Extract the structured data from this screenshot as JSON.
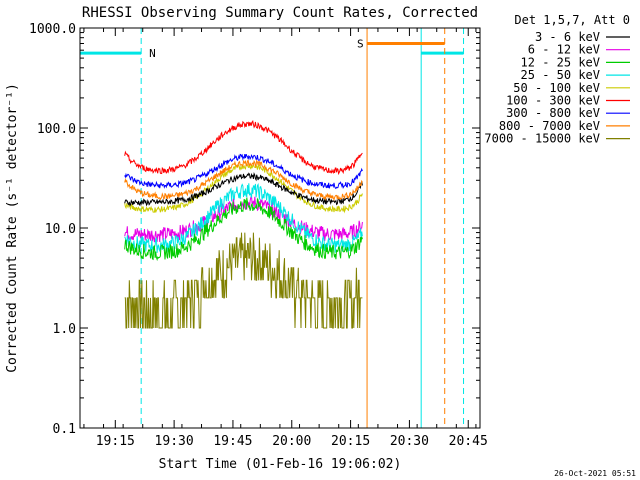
{
  "chart_data": {
    "type": "line",
    "title": "RHESSI Observing Summary Count Rates, Corrected",
    "xlabel": "Start Time (01-Feb-16 19:06:02)",
    "ylabel": "Corrected Count Rate (s⁻¹ detector⁻¹)",
    "yscale": "log",
    "ylim": [
      0.1,
      1000.0
    ],
    "y_ticks": [
      0.1,
      1.0,
      10.0,
      100.0,
      1000.0
    ],
    "y_tick_labels": [
      "0.1",
      "1.0",
      "10.0",
      "100.0",
      "1000.0"
    ],
    "xlim_minutes": [
      19.1,
      20.8
    ],
    "x_ticks": [
      19.25,
      19.5,
      19.75,
      20.0,
      20.25,
      20.5,
      20.75
    ],
    "x_tick_labels": [
      "19:15",
      "19:30",
      "19:45",
      "20:00",
      "20:15",
      "20:30",
      "20:45"
    ],
    "legend_title": "Det 1,5,7, Att 0",
    "legend_position": "outside-right",
    "data_window_hours": [
      19.29,
      20.3
    ],
    "series": [
      {
        "name": "3 - 6 keV",
        "color": "#000000",
        "base": 18,
        "peak": 33,
        "start_val": 18,
        "end_val": 28
      },
      {
        "name": "6 - 12 keV",
        "color": "#e600e6",
        "base": 8.5,
        "peak": 18,
        "start_val": 9,
        "end_val": 11
      },
      {
        "name": "12 - 25 keV",
        "color": "#00cc00",
        "base": 5.5,
        "peak": 17,
        "start_val": 7,
        "end_val": 8
      },
      {
        "name": "25 - 50 keV",
        "color": "#00e6e6",
        "base": 6.5,
        "peak": 24,
        "start_val": 8,
        "end_val": 9
      },
      {
        "name": "50 - 100 keV",
        "color": "#cccc00",
        "base": 15,
        "peak": 42,
        "start_val": 17,
        "end_val": 22
      },
      {
        "name": "100 - 300 keV",
        "color": "#ff0000",
        "base": 36,
        "peak": 110,
        "start_val": 55,
        "end_val": 60
      },
      {
        "name": "300 - 800 keV",
        "color": "#0000ff",
        "base": 26,
        "peak": 52,
        "start_val": 35,
        "end_val": 38
      },
      {
        "name": "800 - 7000 keV",
        "color": "#ff7f00",
        "base": 20,
        "peak": 45,
        "start_val": 30,
        "end_val": 30
      },
      {
        "name": "7000 - 15000 keV",
        "color": "#808000",
        "base": 1.5,
        "peak": 5.0,
        "start_val": 2.0,
        "end_val": 3.0
      }
    ],
    "flag_markers": [
      {
        "label": "N",
        "color": "#00e6e6",
        "value": 560,
        "segments": [
          [
            19.1,
            19.36
          ],
          [
            20.55,
            20.73
          ]
        ],
        "vlines_solid": [
          19.1,
          20.55
        ],
        "vlines_dashed": [
          19.36,
          20.73
        ]
      },
      {
        "label": "S",
        "color": "#ff7f00",
        "value": 700,
        "segments": [
          [
            20.32,
            20.65
          ]
        ],
        "vlines_solid": [
          20.32
        ],
        "vlines_dashed": [
          20.65
        ]
      }
    ]
  },
  "timestamp": "26-Oct-2021 05:51"
}
